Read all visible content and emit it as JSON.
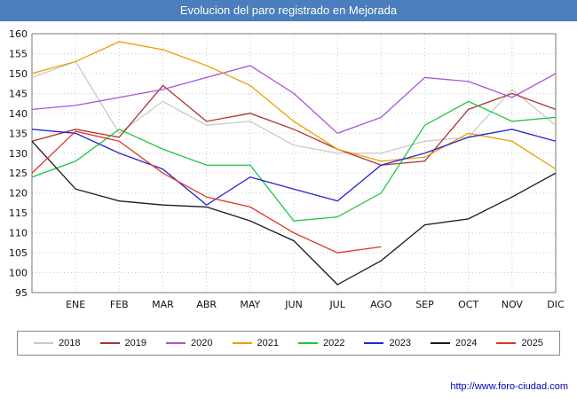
{
  "chart_data": {
    "type": "line",
    "title": "Evolucion del paro registrado en Mejorada",
    "categories": [
      "ENE",
      "FEB",
      "MAR",
      "ABR",
      "MAY",
      "JUN",
      "JUL",
      "AGO",
      "SEP",
      "OCT",
      "NOV",
      "DIC"
    ],
    "note": "first value of each series sits on the left axis edge (carry-over point before ENE)",
    "ylim": [
      95,
      160
    ],
    "ytick_step": 5,
    "grid": true,
    "legend_position": "bottom",
    "series": [
      {
        "name": "2018",
        "color": "#c9c9c9",
        "values": [
          149,
          153,
          135,
          143,
          137,
          138,
          132,
          130,
          130,
          133,
          134,
          146,
          137
        ]
      },
      {
        "name": "2019",
        "color": "#aa3333",
        "values": [
          133,
          136,
          134,
          147,
          138,
          140,
          136,
          131,
          127,
          128,
          141,
          145,
          141
        ]
      },
      {
        "name": "2020",
        "color": "#a855d5",
        "values": [
          141,
          142,
          144,
          146,
          149,
          152,
          145,
          135,
          139,
          149,
          148,
          144,
          150
        ]
      },
      {
        "name": "2021",
        "color": "#e8a000",
        "values": [
          150,
          153,
          158,
          156,
          152,
          147,
          138,
          131,
          128,
          129,
          135,
          133,
          126
        ]
      },
      {
        "name": "2022",
        "color": "#20c440",
        "values": [
          124,
          128,
          136,
          131,
          127,
          127,
          113,
          114,
          120,
          137,
          143,
          138,
          139
        ]
      },
      {
        "name": "2023",
        "color": "#2727d0",
        "values": [
          136,
          135,
          130,
          126,
          117,
          124,
          121,
          118,
          127,
          130,
          134,
          136,
          133
        ]
      },
      {
        "name": "2024",
        "color": "#1a1a1a",
        "values": [
          133,
          121,
          118,
          117,
          116.5,
          113,
          108,
          97,
          103,
          112,
          113.5,
          119,
          125
        ]
      },
      {
        "name": "2025",
        "color": "#e43425",
        "values": [
          125,
          135.5,
          133,
          125,
          119,
          116.5,
          110,
          105,
          106.5
        ]
      }
    ]
  },
  "footer": {
    "link": "http://www.foro-ciudad.com"
  }
}
